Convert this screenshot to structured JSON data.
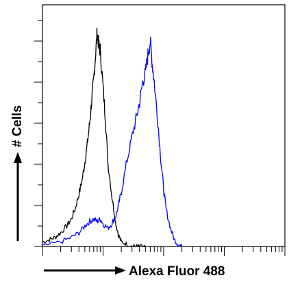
{
  "chart_data": {
    "type": "line",
    "xlabel": "Alexa Fluor 488",
    "ylabel": "# Cells",
    "x_scale": "log",
    "xlim": [
      1,
      10000
    ],
    "ylim": [
      0,
      100
    ],
    "grid": false,
    "legend": "none",
    "series": [
      {
        "color": "#000000",
        "x": [
          1,
          1.3,
          1.6,
          2,
          2.5,
          3,
          3.5,
          4,
          4.5,
          5,
          5.5,
          6,
          6.5,
          7,
          7.5,
          8,
          8.5,
          9,
          10,
          11,
          12,
          14,
          16,
          18,
          20,
          25,
          30,
          35,
          40,
          50
        ],
        "y": [
          2,
          3,
          4,
          6,
          9,
          12,
          17,
          23,
          29,
          37,
          45,
          54,
          64,
          73,
          84,
          94,
          88,
          86,
          70,
          55,
          37,
          22,
          11,
          5,
          2,
          1,
          0,
          0,
          0,
          0
        ]
      },
      {
        "color": "#0000ff",
        "x": [
          1,
          2,
          3,
          4,
          5,
          6,
          7,
          8,
          9,
          10,
          12,
          14,
          16,
          18,
          20,
          25,
          30,
          35,
          40,
          45,
          50,
          55,
          60,
          65,
          70,
          80,
          90,
          100,
          110,
          130,
          150,
          170,
          200
        ],
        "y": [
          0,
          2,
          4,
          6,
          9,
          11,
          12,
          11,
          12,
          10,
          8,
          10,
          13,
          18,
          24,
          38,
          48,
          56,
          63,
          72,
          76,
          84,
          90,
          80,
          72,
          55,
          38,
          25,
          16,
          8,
          3,
          1,
          0
        ]
      }
    ]
  }
}
